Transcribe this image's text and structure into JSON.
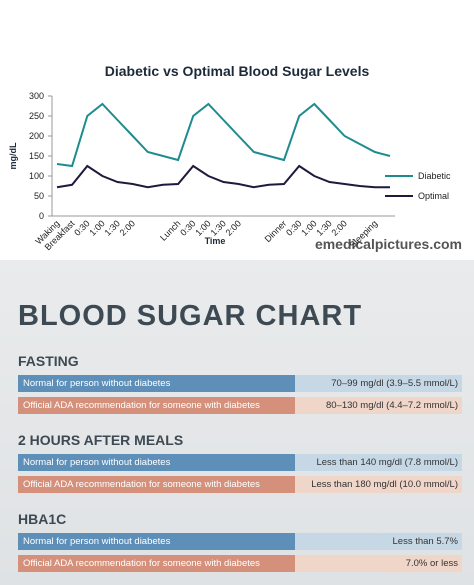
{
  "chart_data": {
    "type": "line",
    "title": "Diabetic vs Optimal Blood Sugar Levels",
    "x_label": "Time",
    "y_label": "mg/dL",
    "categories": [
      "Waking",
      "Breakfast",
      "0:30",
      "1:00",
      "1:30",
      "2:00",
      null,
      null,
      "Lunch",
      "0:30",
      "1:00",
      "1:30",
      "2:00",
      null,
      null,
      "Dinner",
      "0:30",
      "1:00",
      "1:30",
      "2:00",
      null,
      "Sleeping",
      null
    ],
    "series": [
      {
        "name": "Diabetic",
        "color": "#1e8c8e",
        "values": [
          130,
          125,
          250,
          280,
          240,
          200,
          160,
          150,
          140,
          250,
          280,
          240,
          200,
          160,
          150,
          140,
          250,
          280,
          240,
          200,
          180,
          160,
          150
        ]
      },
      {
        "name": "Optimal",
        "color": "#1d1a3d",
        "values": [
          72,
          78,
          125,
          100,
          85,
          80,
          72,
          78,
          80,
          125,
          100,
          85,
          80,
          72,
          78,
          80,
          125,
          100,
          85,
          80,
          75,
          72,
          72
        ]
      }
    ],
    "ylim": [
      0,
      300
    ],
    "yticks": [
      0,
      50,
      100,
      150,
      200,
      250,
      300
    ],
    "grid": false,
    "legend": "right"
  },
  "watermark": "emedicalpictures.com",
  "blood_sugar_chart": {
    "title": "BLOOD SUGAR CHART",
    "sections": [
      {
        "heading": "FASTING",
        "rows": [
          {
            "label": "Normal for person without diabetes",
            "value": "70–99 mg/dl (3.9–5.5 mmol/L)"
          },
          {
            "label": "Official ADA recommendation for someone with diabetes",
            "value": "80–130 mg/dl (4.4–7.2 mmol/L)"
          }
        ]
      },
      {
        "heading": "2 HOURS AFTER MEALS",
        "rows": [
          {
            "label": "Normal for person without diabetes",
            "value": "Less than 140 mg/dl (7.8 mmol/L)"
          },
          {
            "label": "Official ADA recommendation for someone with diabetes",
            "value": "Less than 180 mg/dl (10.0 mmol/L)"
          }
        ]
      },
      {
        "heading": "HBA1C",
        "rows": [
          {
            "label": "Normal for person without diabetes",
            "value": "Less than 5.7%"
          },
          {
            "label": "Official ADA recommendation for someone with diabetes",
            "value": "7.0% or less"
          }
        ]
      }
    ]
  }
}
